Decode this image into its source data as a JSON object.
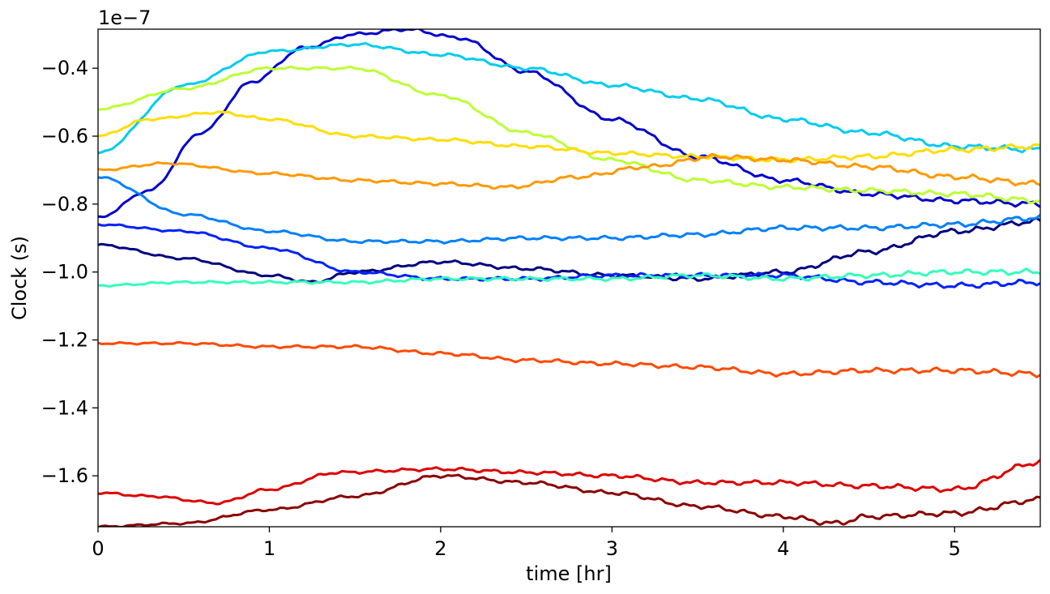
{
  "chart_data": {
    "type": "line",
    "xlabel": "time [hr]",
    "ylabel": "Clock (s)",
    "y_offset_label": "1e−7",
    "xlim": [
      0,
      5.5
    ],
    "ylim": [
      -1.75,
      -0.285
    ],
    "x_ticks": [
      0,
      1,
      2,
      3,
      4,
      5
    ],
    "x_tick_labels": [
      "0",
      "1",
      "2",
      "3",
      "4",
      "5"
    ],
    "y_ticks": [
      -1.6,
      -1.4,
      -1.2,
      -1.0,
      -0.8,
      -0.6,
      -0.4
    ],
    "y_tick_labels": [
      "−1.6",
      "−1.4",
      "−1.2",
      "−1.0",
      "−0.8",
      "−0.6",
      "−0.4"
    ],
    "grid": false,
    "series": [
      {
        "color": "#000080",
        "x": [
          0,
          0.5,
          1.0,
          1.25,
          1.5,
          2.0,
          2.5,
          3.0,
          3.5,
          4.0,
          4.5,
          5.0,
          5.5
        ],
        "y": [
          -0.92,
          -0.96,
          -1.01,
          -1.03,
          -1.0,
          -0.97,
          -0.99,
          -1.01,
          -1.02,
          -1.0,
          -0.94,
          -0.88,
          -0.85
        ]
      },
      {
        "color": "#0000cd",
        "x": [
          0,
          0.3,
          0.6,
          0.9,
          1.2,
          1.5,
          1.8,
          2.1,
          2.5,
          3.0,
          3.5,
          4.0,
          4.5,
          5.0,
          5.5
        ],
        "y": [
          -0.84,
          -0.76,
          -0.59,
          -0.44,
          -0.34,
          -0.3,
          -0.285,
          -0.31,
          -0.41,
          -0.55,
          -0.66,
          -0.73,
          -0.77,
          -0.79,
          -0.8
        ]
      },
      {
        "color": "#0022ff",
        "x": [
          0,
          0.5,
          1.0,
          1.5,
          2.0,
          2.5,
          3.0,
          3.5,
          4.0,
          4.5,
          5.0,
          5.5
        ],
        "y": [
          -0.86,
          -0.88,
          -0.93,
          -1.0,
          -1.02,
          -1.02,
          -1.01,
          -1.01,
          -1.01,
          -1.03,
          -1.04,
          -1.03
        ]
      },
      {
        "color": "#0080ff",
        "x": [
          0,
          0.5,
          1.0,
          1.5,
          2.0,
          2.5,
          3.0,
          3.5,
          4.0,
          4.5,
          5.0,
          5.5
        ],
        "y": [
          -0.72,
          -0.83,
          -0.88,
          -0.91,
          -0.91,
          -0.9,
          -0.9,
          -0.89,
          -0.87,
          -0.87,
          -0.86,
          -0.84
        ]
      },
      {
        "color": "#00ccee",
        "x": [
          0,
          0.5,
          1.0,
          1.5,
          2.0,
          2.5,
          3.0,
          3.5,
          4.0,
          4.5,
          5.0,
          5.5
        ],
        "y": [
          -0.65,
          -0.45,
          -0.35,
          -0.33,
          -0.36,
          -0.4,
          -0.45,
          -0.49,
          -0.55,
          -0.59,
          -0.63,
          -0.64
        ]
      },
      {
        "color": "#33ffbb",
        "x": [
          0,
          0.5,
          1.0,
          1.5,
          2.0,
          2.5,
          3.0,
          3.5,
          4.0,
          4.5,
          5.0,
          5.5
        ],
        "y": [
          -1.04,
          -1.03,
          -1.03,
          -1.03,
          -1.02,
          -1.02,
          -1.02,
          -1.01,
          -1.02,
          -1.01,
          -1.0,
          -1.0
        ]
      },
      {
        "color": "#bbff33",
        "x": [
          0,
          0.5,
          1.0,
          1.5,
          2.0,
          2.5,
          3.0,
          3.5,
          4.0,
          4.5,
          5.0,
          5.5
        ],
        "y": [
          -0.52,
          -0.46,
          -0.4,
          -0.4,
          -0.48,
          -0.59,
          -0.67,
          -0.73,
          -0.75,
          -0.76,
          -0.77,
          -0.79
        ]
      },
      {
        "color": "#ffdd00",
        "x": [
          0,
          0.3,
          0.7,
          1.0,
          1.5,
          2.0,
          2.5,
          3.0,
          3.5,
          4.0,
          4.5,
          5.0,
          5.5
        ],
        "y": [
          -0.6,
          -0.55,
          -0.53,
          -0.55,
          -0.6,
          -0.61,
          -0.63,
          -0.65,
          -0.66,
          -0.67,
          -0.66,
          -0.64,
          -0.63
        ]
      },
      {
        "color": "#ff9900",
        "x": [
          0,
          0.4,
          1.0,
          1.5,
          2.0,
          2.4,
          2.8,
          3.2,
          3.6,
          4.0,
          4.5,
          5.0,
          5.5
        ],
        "y": [
          -0.7,
          -0.68,
          -0.71,
          -0.73,
          -0.74,
          -0.75,
          -0.72,
          -0.69,
          -0.66,
          -0.67,
          -0.69,
          -0.72,
          -0.74
        ]
      },
      {
        "color": "#ff4a00",
        "x": [
          0,
          0.5,
          1.0,
          1.5,
          2.0,
          2.5,
          3.0,
          3.5,
          4.0,
          4.5,
          5.0,
          5.5
        ],
        "y": [
          -1.21,
          -1.21,
          -1.22,
          -1.22,
          -1.24,
          -1.26,
          -1.27,
          -1.28,
          -1.3,
          -1.29,
          -1.29,
          -1.3
        ]
      },
      {
        "color": "#dd0000",
        "x": [
          0,
          0.3,
          0.7,
          1.0,
          1.4,
          2.0,
          2.5,
          3.0,
          3.5,
          4.0,
          4.5,
          5.0,
          5.5
        ],
        "y": [
          -1.65,
          -1.66,
          -1.68,
          -1.64,
          -1.59,
          -1.58,
          -1.59,
          -1.6,
          -1.62,
          -1.62,
          -1.63,
          -1.64,
          -1.56
        ]
      },
      {
        "color": "#8b0000",
        "x": [
          0,
          0.5,
          1.0,
          1.5,
          2.0,
          2.5,
          3.0,
          3.5,
          4.0,
          4.3,
          4.5,
          5.0,
          5.5
        ],
        "y": [
          -1.75,
          -1.74,
          -1.7,
          -1.66,
          -1.6,
          -1.62,
          -1.65,
          -1.69,
          -1.72,
          -1.74,
          -1.72,
          -1.71,
          -1.67
        ]
      }
    ]
  }
}
